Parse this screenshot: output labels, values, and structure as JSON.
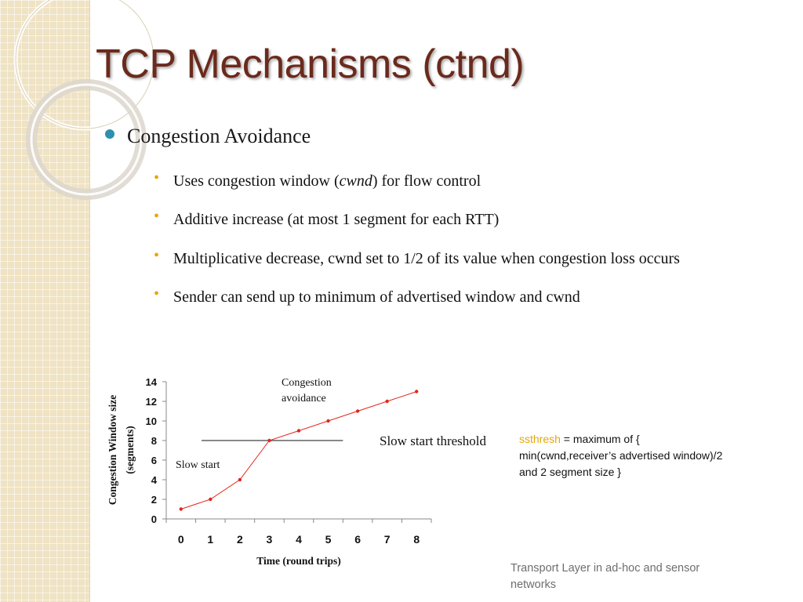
{
  "slide": {
    "title": "TCP Mechanisms (ctnd)",
    "main_bullet": "Congestion Avoidance",
    "sub_bullets": [
      {
        "before": "Uses congestion window (",
        "italic": "cwnd",
        "after": ") for flow control"
      },
      {
        "text": "Additive increase (at most 1 segment for each  RTT)"
      },
      {
        "text": "Multiplicative decrease, cwnd set to 1/2 of its value when congestion loss occurs"
      },
      {
        "text": "Sender can send up to minimum of advertised window and cwnd"
      }
    ],
    "sub_bullet_marker": "•",
    "formula": {
      "highlight": "ssthresh",
      "rest": " =  maximum of { min(cwnd,receiver’s advertised window)/2 and 2 segment size }"
    },
    "footer": "Transport Layer in ad-hoc and sensor networks",
    "colors": {
      "title": "#6b2a1c",
      "main_bullet": "#2e8fb0",
      "sub_bullet": "#e5a60d",
      "highlight": "#e5a60d",
      "series": "#e2261d",
      "threshold": "#404040"
    }
  },
  "chart_data": {
    "type": "line",
    "x": [
      0,
      1,
      2,
      3,
      4,
      5,
      6,
      7,
      8
    ],
    "x_ticks": [
      "0",
      "1",
      "2",
      "3",
      "4",
      "5",
      "6",
      "7",
      "8"
    ],
    "y_ticks": [
      "0",
      "2",
      "4",
      "6",
      "8",
      "10",
      "12",
      "14"
    ],
    "series": [
      {
        "values": [
          1,
          2,
          4,
          8,
          9,
          10,
          11,
          12,
          13
        ],
        "color": "#e2261d"
      }
    ],
    "threshold": {
      "y": 8,
      "x_from": 0.7,
      "x_to": 5.5,
      "label": "Slow start threshold"
    },
    "xlabel": "Time (round trips)",
    "ylabel_line1": "Congestion Window size",
    "ylabel_line2": "(segments)",
    "annotations": {
      "slow_start": "Slow start",
      "congestion_line1": "Congestion",
      "congestion_line2": "avoidance"
    },
    "xlim": [
      -0.5,
      8.5
    ],
    "ylim": [
      0,
      14
    ],
    "grid": false
  }
}
